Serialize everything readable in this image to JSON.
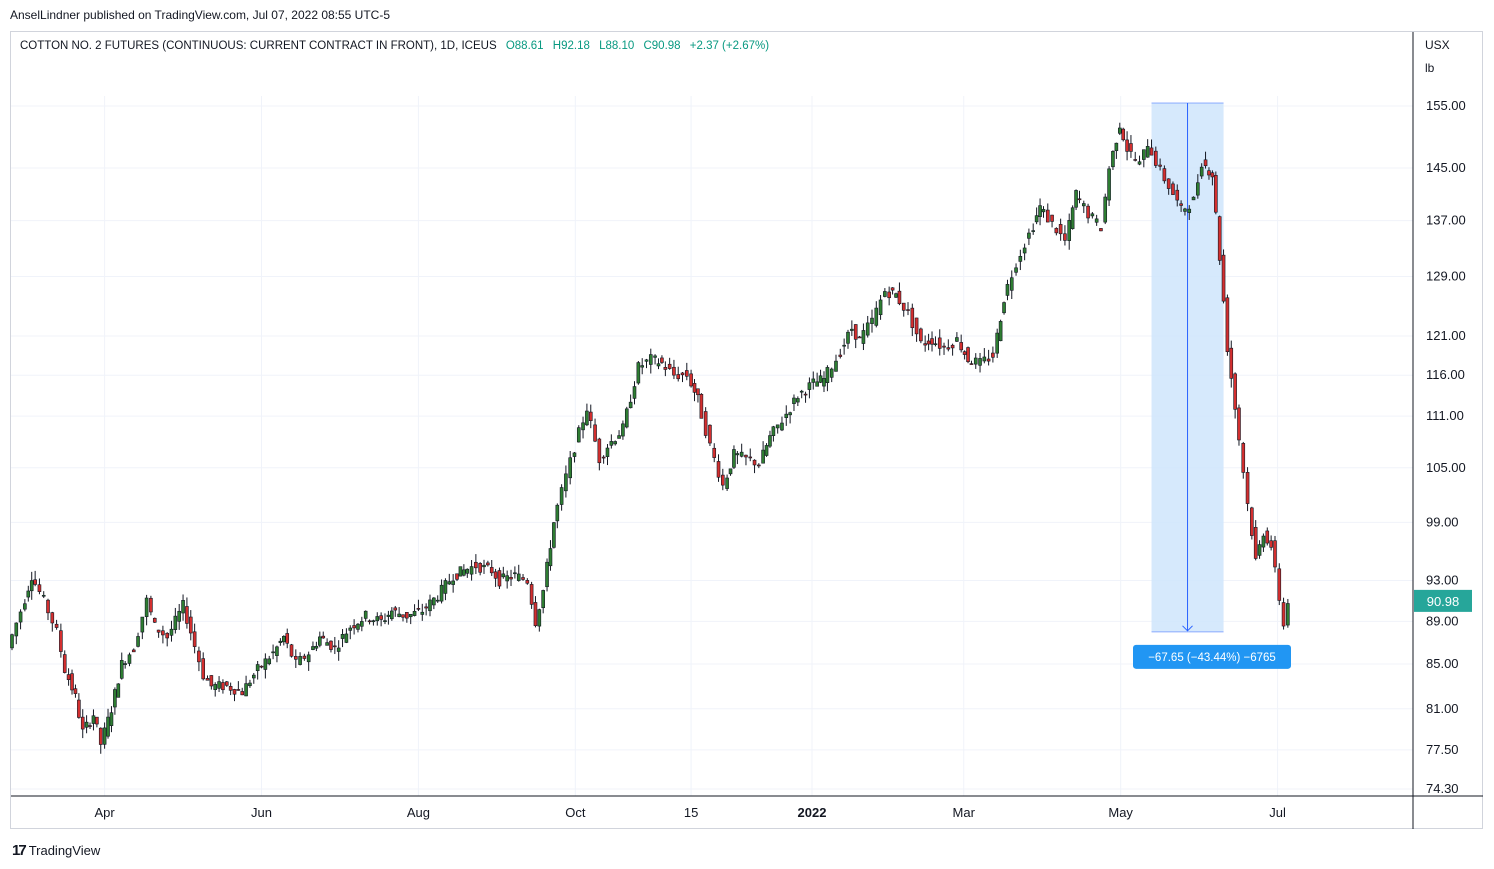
{
  "header": {
    "published": "AnselLindner published on TradingView.com, Jul 07, 2022 08:55 UTC-5"
  },
  "legend": {
    "symbol": "COTTON NO. 2 FUTURES (CONTINUOUS: CURRENT CONTRACT IN FRONT), 1D, ICEUS",
    "open": "O88.61",
    "high": "H92.18",
    "low": "L88.10",
    "close": "C90.98",
    "change": "+2.37 (+2.67%)"
  },
  "axis": {
    "currency": "USX",
    "unit": "lb",
    "current_price": "90.98",
    "price_ticks": [
      "155.00",
      "145.00",
      "137.00",
      "129.00",
      "121.00",
      "116.00",
      "111.00",
      "105.00",
      "99.00",
      "93.00",
      "89.00",
      "85.00",
      "81.00",
      "77.50",
      "74.30"
    ],
    "time_ticks": [
      "Apr",
      "Jun",
      "Aug",
      "Oct",
      "15",
      "2022",
      "Mar",
      "May",
      "Jul"
    ]
  },
  "measure": {
    "label": "−67.65 (−43.44%) −6765",
    "from": 155.5,
    "to": 88.0
  },
  "footer": {
    "brand": "TradingView",
    "logo_mark": "17"
  },
  "colors": {
    "up": "#26a69a",
    "up_body": "#2e7d32",
    "down": "#d32f2f",
    "measure_fill": "#cfe5fb",
    "measure_line": "#2962ff",
    "price_tag": "#26a69a",
    "grid": "#f0f3fa"
  },
  "chart_data": {
    "type": "candlestick",
    "title": "COTTON NO. 2 FUTURES (CONTINUOUS: CURRENT CONTRACT IN FRONT), 1D, ICEUS",
    "y_scale": "log",
    "ylim": [
      74.3,
      160
    ],
    "series": [
      {
        "name": "COTTON NO. 2 FUTURES",
        "points": [
          {
            "date": "2021-02-24",
            "close": 86.5
          },
          {
            "date": "2021-03-01",
            "close": 90.0
          },
          {
            "date": "2021-03-05",
            "close": 93.5
          },
          {
            "date": "2021-03-10",
            "close": 91.0
          },
          {
            "date": "2021-03-15",
            "close": 88.0
          },
          {
            "date": "2021-03-18",
            "close": 84.5
          },
          {
            "date": "2021-03-22",
            "close": 82.0
          },
          {
            "date": "2021-03-25",
            "close": 79.0
          },
          {
            "date": "2021-03-29",
            "close": 80.5
          },
          {
            "date": "2021-04-01",
            "close": 78.0
          },
          {
            "date": "2021-04-05",
            "close": 81.0
          },
          {
            "date": "2021-04-09",
            "close": 85.0
          },
          {
            "date": "2021-04-14",
            "close": 86.5
          },
          {
            "date": "2021-04-19",
            "close": 91.0
          },
          {
            "date": "2021-04-22",
            "close": 88.5
          },
          {
            "date": "2021-04-27",
            "close": 87.5
          },
          {
            "date": "2021-05-03",
            "close": 90.5
          },
          {
            "date": "2021-05-06",
            "close": 88.0
          },
          {
            "date": "2021-05-11",
            "close": 84.0
          },
          {
            "date": "2021-05-14",
            "close": 83.0
          },
          {
            "date": "2021-05-20",
            "close": 83.0
          },
          {
            "date": "2021-05-26",
            "close": 82.5
          },
          {
            "date": "2021-06-01",
            "close": 84.5
          },
          {
            "date": "2021-06-07",
            "close": 86.0
          },
          {
            "date": "2021-06-11",
            "close": 87.5
          },
          {
            "date": "2021-06-16",
            "close": 85.0
          },
          {
            "date": "2021-06-21",
            "close": 86.0
          },
          {
            "date": "2021-06-25",
            "close": 87.5
          },
          {
            "date": "2021-07-01",
            "close": 86.5
          },
          {
            "date": "2021-07-07",
            "close": 88.5
          },
          {
            "date": "2021-07-13",
            "close": 89.5
          },
          {
            "date": "2021-07-19",
            "close": 89.0
          },
          {
            "date": "2021-07-23",
            "close": 90.0
          },
          {
            "date": "2021-07-29",
            "close": 89.5
          },
          {
            "date": "2021-08-04",
            "close": 90.0
          },
          {
            "date": "2021-08-10",
            "close": 91.5
          },
          {
            "date": "2021-08-16",
            "close": 93.5
          },
          {
            "date": "2021-08-20",
            "close": 94.0
          },
          {
            "date": "2021-08-25",
            "close": 94.5
          },
          {
            "date": "2021-08-31",
            "close": 94.0
          },
          {
            "date": "2021-09-03",
            "close": 93.0
          },
          {
            "date": "2021-09-09",
            "close": 93.5
          },
          {
            "date": "2021-09-14",
            "close": 93.0
          },
          {
            "date": "2021-09-17",
            "close": 89.0
          },
          {
            "date": "2021-09-20",
            "close": 92.0
          },
          {
            "date": "2021-09-24",
            "close": 99.0
          },
          {
            "date": "2021-09-29",
            "close": 104.0
          },
          {
            "date": "2021-10-04",
            "close": 109.0
          },
          {
            "date": "2021-10-07",
            "close": 112.0
          },
          {
            "date": "2021-10-12",
            "close": 106.0
          },
          {
            "date": "2021-10-15",
            "close": 107.5
          },
          {
            "date": "2021-10-21",
            "close": 109.5
          },
          {
            "date": "2021-10-27",
            "close": 117.0
          },
          {
            "date": "2021-11-01",
            "close": 118.0
          },
          {
            "date": "2021-11-05",
            "close": 117.5
          },
          {
            "date": "2021-11-10",
            "close": 116.0
          },
          {
            "date": "2021-11-15",
            "close": 116.0
          },
          {
            "date": "2021-11-19",
            "close": 113.0
          },
          {
            "date": "2021-11-24",
            "close": 107.5
          },
          {
            "date": "2021-11-29",
            "close": 103.0
          },
          {
            "date": "2021-12-03",
            "close": 106.5
          },
          {
            "date": "2021-12-08",
            "close": 106.0
          },
          {
            "date": "2021-12-13",
            "close": 105.5
          },
          {
            "date": "2021-12-17",
            "close": 108.5
          },
          {
            "date": "2021-12-22",
            "close": 110.5
          },
          {
            "date": "2021-12-28",
            "close": 113.5
          },
          {
            "date": "2022-01-03",
            "close": 115.0
          },
          {
            "date": "2022-01-07",
            "close": 115.5
          },
          {
            "date": "2022-01-12",
            "close": 118.0
          },
          {
            "date": "2022-01-18",
            "close": 122.0
          },
          {
            "date": "2022-01-21",
            "close": 120.5
          },
          {
            "date": "2022-01-26",
            "close": 123.0
          },
          {
            "date": "2022-01-31",
            "close": 127.0
          },
          {
            "date": "2022-02-04",
            "close": 126.5
          },
          {
            "date": "2022-02-09",
            "close": 124.0
          },
          {
            "date": "2022-02-14",
            "close": 120.0
          },
          {
            "date": "2022-02-18",
            "close": 120.5
          },
          {
            "date": "2022-02-23",
            "close": 119.5
          },
          {
            "date": "2022-02-28",
            "close": 120.5
          },
          {
            "date": "2022-03-04",
            "close": 118.0
          },
          {
            "date": "2022-03-09",
            "close": 117.5
          },
          {
            "date": "2022-03-14",
            "close": 118.5
          },
          {
            "date": "2022-03-18",
            "close": 126.0
          },
          {
            "date": "2022-03-23",
            "close": 131.0
          },
          {
            "date": "2022-03-28",
            "close": 135.0
          },
          {
            "date": "2022-04-01",
            "close": 139.0
          },
          {
            "date": "2022-04-06",
            "close": 136.5
          },
          {
            "date": "2022-04-11",
            "close": 134.0
          },
          {
            "date": "2022-04-15",
            "close": 141.0
          },
          {
            "date": "2022-04-20",
            "close": 138.0
          },
          {
            "date": "2022-04-25",
            "close": 136.0
          },
          {
            "date": "2022-04-28",
            "close": 145.0
          },
          {
            "date": "2022-05-02",
            "close": 152.0
          },
          {
            "date": "2022-05-05",
            "close": 148.0
          },
          {
            "date": "2022-05-10",
            "close": 145.5
          },
          {
            "date": "2022-05-13",
            "close": 149.0
          },
          {
            "date": "2022-05-18",
            "close": 144.5
          },
          {
            "date": "2022-05-23",
            "close": 141.0
          },
          {
            "date": "2022-05-26",
            "close": 138.5
          },
          {
            "date": "2022-05-31",
            "close": 140.0
          },
          {
            "date": "2022-06-03",
            "close": 146.0
          },
          {
            "date": "2022-06-07",
            "close": 144.0
          },
          {
            "date": "2022-06-13",
            "close": 119.5
          },
          {
            "date": "2022-06-16",
            "close": 112.0
          },
          {
            "date": "2022-06-21",
            "close": 101.0
          },
          {
            "date": "2022-06-24",
            "close": 95.0
          },
          {
            "date": "2022-06-27",
            "close": 98.0
          },
          {
            "date": "2022-06-30",
            "close": 96.5
          },
          {
            "date": "2022-07-05",
            "close": 88.61
          },
          {
            "date": "2022-07-07",
            "close": 90.98
          }
        ]
      }
    ],
    "measure": {
      "change": "−67.65 (−43.44%) −6765",
      "from": 155.5,
      "to": 88.0
    }
  }
}
